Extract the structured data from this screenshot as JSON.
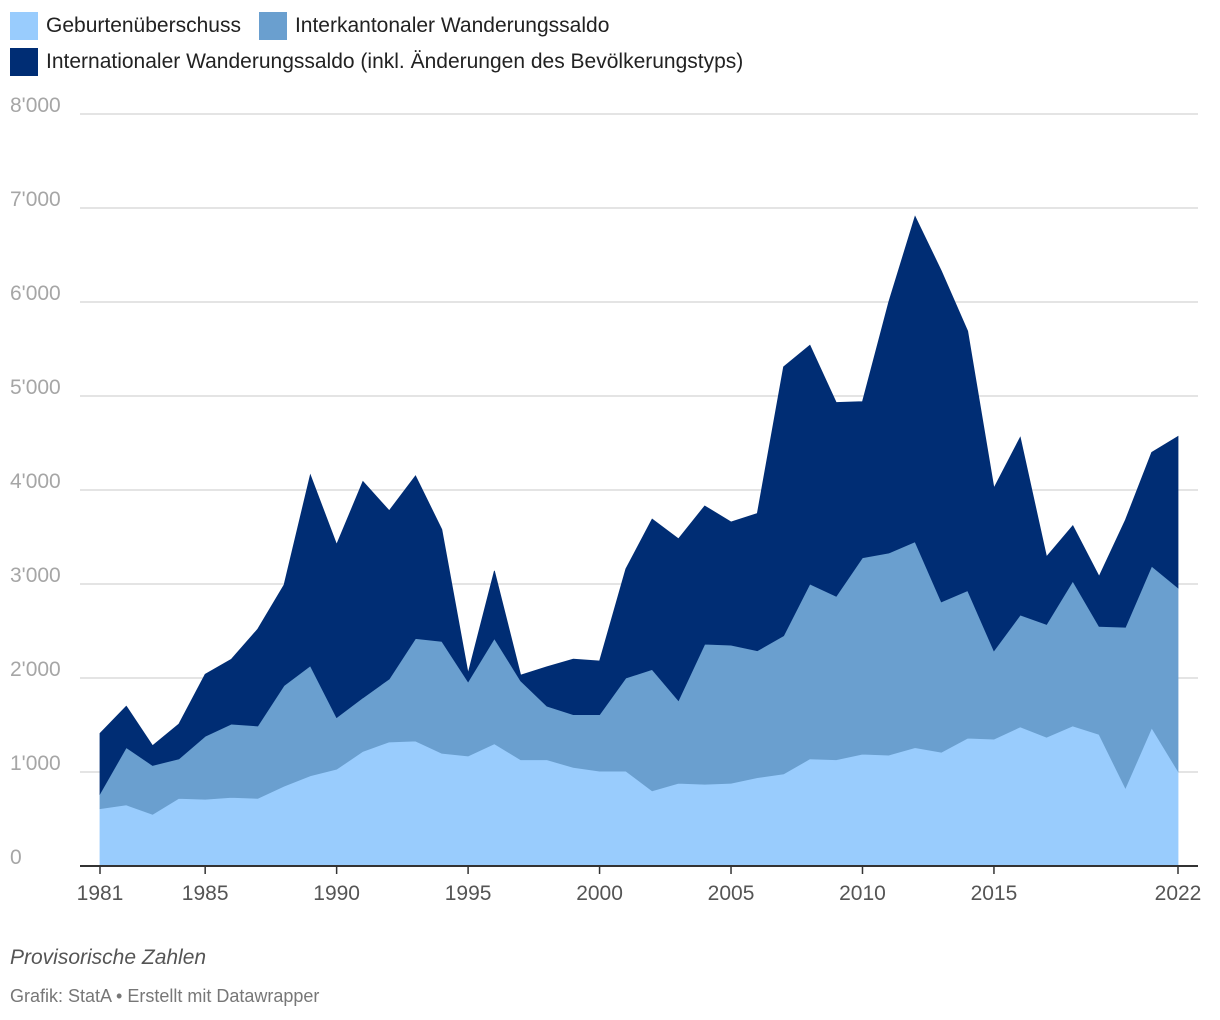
{
  "chart_data": {
    "type": "area",
    "stacked": true,
    "x": [
      1981,
      1982,
      1983,
      1984,
      1985,
      1986,
      1987,
      1988,
      1989,
      1990,
      1991,
      1992,
      1993,
      1994,
      1995,
      1996,
      1997,
      1998,
      1999,
      2000,
      2001,
      2002,
      2003,
      2004,
      2005,
      2006,
      2007,
      2008,
      2009,
      2010,
      2011,
      2012,
      2013,
      2014,
      2015,
      2016,
      2017,
      2018,
      2019,
      2020,
      2021,
      2022
    ],
    "series": [
      {
        "name": "Geburtenüberschuss",
        "color": "#99ccfd",
        "values": [
          610,
          650,
          550,
          720,
          710,
          730,
          720,
          850,
          960,
          1030,
          1220,
          1320,
          1330,
          1200,
          1170,
          1300,
          1130,
          1130,
          1050,
          1010,
          1010,
          800,
          880,
          870,
          880,
          940,
          980,
          1140,
          1130,
          1190,
          1180,
          1260,
          1210,
          1360,
          1350,
          1480,
          1370,
          1490,
          1400,
          830,
          1470,
          1010
        ]
      },
      {
        "name": "Interkantonaler Wanderungssaldo",
        "color": "#6a9fcf",
        "values": [
          160,
          610,
          520,
          420,
          670,
          780,
          770,
          1070,
          1170,
          550,
          570,
          670,
          1090,
          1190,
          790,
          1120,
          840,
          570,
          560,
          600,
          990,
          1290,
          880,
          1490,
          1470,
          1350,
          1470,
          1860,
          1740,
          2090,
          2150,
          2190,
          1600,
          1570,
          940,
          1190,
          1200,
          1540,
          1150,
          1710,
          1720,
          1950
        ]
      },
      {
        "name": "Internationaler Wanderungssaldo (inkl. Änderungen des Bevölkerungstyps)",
        "color": "#002d74",
        "values": [
          640,
          440,
          210,
          370,
          660,
          690,
          1030,
          1070,
          2030,
          1840,
          2300,
          1790,
          1730,
          1190,
          90,
          720,
          60,
          420,
          590,
          570,
          1160,
          1600,
          1720,
          1470,
          1310,
          1460,
          2860,
          2540,
          2060,
          1660,
          2670,
          3460,
          3520,
          2760,
          1730,
          1890,
          720,
          590,
          530,
          1140,
          1210,
          1610
        ]
      }
    ],
    "ylim": [
      0,
      8000
    ],
    "yticks": [
      0,
      1000,
      2000,
      3000,
      4000,
      5000,
      6000,
      7000,
      8000
    ],
    "ytick_labels": [
      "0",
      "1'000",
      "2'000",
      "3'000",
      "4'000",
      "5'000",
      "6'000",
      "7'000",
      "8'000"
    ],
    "xticks": [
      1981,
      1985,
      1990,
      1995,
      2000,
      2005,
      2010,
      2015,
      2022
    ],
    "xtick_labels": [
      "1981",
      "1985",
      "1990",
      "1995",
      "2000",
      "2005",
      "2010",
      "2015",
      "2022"
    ],
    "grid": true,
    "legend_position": "top-left"
  },
  "footer": {
    "note": "Provisorische Zahlen",
    "credit": "Grafik: StatA • Erstellt mit Datawrapper"
  }
}
